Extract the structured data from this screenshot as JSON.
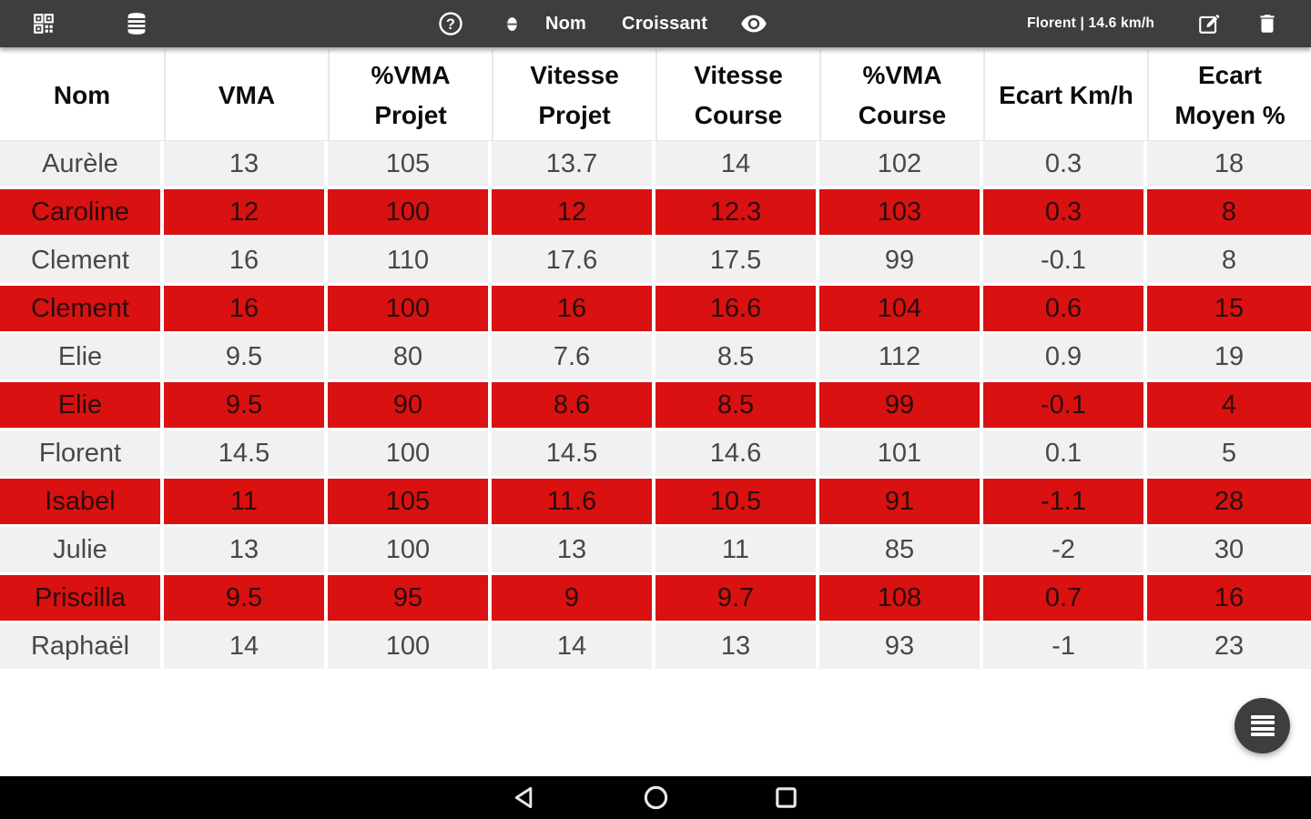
{
  "app_bar": {
    "left_icons": [
      "qr-code-icon",
      "database-icon"
    ],
    "help_icon": "help-circle-icon",
    "sort_direction_icon": "sort-direction-icon",
    "sort_field": "Nom",
    "sort_order": "Croissant",
    "visibility_icon": "eye-icon",
    "runner_status": "Florent | 14.6 km/h",
    "edit_icon": "edit-icon",
    "delete_icon": "trash-icon"
  },
  "table": {
    "columns": [
      {
        "label": "Nom",
        "lines": [
          "Nom"
        ]
      },
      {
        "label": "VMA",
        "lines": [
          "VMA"
        ]
      },
      {
        "label": "%VMA Projet",
        "lines": [
          "%VMA",
          "Projet"
        ]
      },
      {
        "label": "Vitesse Projet",
        "lines": [
          "Vitesse",
          "Projet"
        ]
      },
      {
        "label": "Vitesse Course",
        "lines": [
          "Vitesse",
          "Course"
        ]
      },
      {
        "label": "%VMA Course",
        "lines": [
          "%VMA",
          "Course"
        ]
      },
      {
        "label": "Ecart Km/h",
        "lines": [
          "Ecart Km/h"
        ]
      },
      {
        "label": "Ecart Moyen %",
        "lines": [
          "Ecart",
          "Moyen %"
        ]
      }
    ],
    "rows": [
      {
        "highlighted": false,
        "values": [
          "Aurèle",
          "13",
          "105",
          "13.7",
          "14",
          "102",
          "0.3",
          "18"
        ]
      },
      {
        "highlighted": true,
        "values": [
          "Caroline",
          "12",
          "100",
          "12",
          "12.3",
          "103",
          "0.3",
          "8"
        ]
      },
      {
        "highlighted": false,
        "values": [
          "Clement",
          "16",
          "110",
          "17.6",
          "17.5",
          "99",
          "-0.1",
          "8"
        ]
      },
      {
        "highlighted": true,
        "values": [
          "Clement",
          "16",
          "100",
          "16",
          "16.6",
          "104",
          "0.6",
          "15"
        ]
      },
      {
        "highlighted": false,
        "values": [
          "Elie",
          "9.5",
          "80",
          "7.6",
          "8.5",
          "112",
          "0.9",
          "19"
        ]
      },
      {
        "highlighted": true,
        "values": [
          "Elie",
          "9.5",
          "90",
          "8.6",
          "8.5",
          "99",
          "-0.1",
          "4"
        ]
      },
      {
        "highlighted": false,
        "values": [
          "Florent",
          "14.5",
          "100",
          "14.5",
          "14.6",
          "101",
          "0.1",
          "5"
        ]
      },
      {
        "highlighted": true,
        "values": [
          "Isabel",
          "11",
          "105",
          "11.6",
          "10.5",
          "91",
          "-1.1",
          "28"
        ]
      },
      {
        "highlighted": false,
        "values": [
          "Julie",
          "13",
          "100",
          "13",
          "11",
          "85",
          "-2",
          "30"
        ]
      },
      {
        "highlighted": true,
        "values": [
          "Priscilla",
          "9.5",
          "95",
          "9",
          "9.7",
          "108",
          "0.7",
          "16"
        ]
      },
      {
        "highlighted": false,
        "values": [
          "Raphaël",
          "14",
          "100",
          "14",
          "13",
          "93",
          "-1",
          "23"
        ]
      }
    ]
  },
  "fab": {
    "icon": "menu-icon"
  },
  "nav_bar": {
    "icons": [
      "back-icon",
      "home-icon",
      "recents-icon"
    ]
  },
  "colors": {
    "app_bar": "#3E3E3E",
    "row_highlight": "#D91111",
    "row_normal": "#F1F1F2",
    "nav_bar": "#000000"
  }
}
